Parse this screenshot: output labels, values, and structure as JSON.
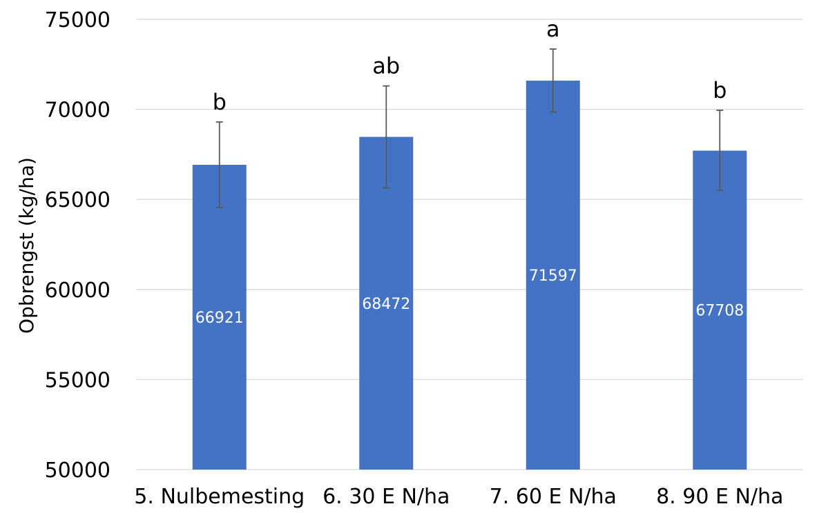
{
  "chart_data": {
    "type": "bar",
    "title": "",
    "xlabel": "",
    "ylabel": "Opbrengst (kg/ha)",
    "ylim": [
      50000,
      75000
    ],
    "yticks": [
      50000,
      55000,
      60000,
      65000,
      70000,
      75000
    ],
    "grid": true,
    "legend": "none",
    "bar_color": "#4472C4",
    "categories": [
      "5. Nulbemesting",
      "6. 30 E N/ha",
      "7. 60 E N/ha",
      "8. 90 E N/ha"
    ],
    "values": [
      66921,
      68472,
      71597,
      67708
    ],
    "data_labels": [
      "66921",
      "68472",
      "71597",
      "67708"
    ],
    "error_low": [
      64550,
      65650,
      69850,
      65500
    ],
    "error_high": [
      69300,
      71300,
      73350,
      69950
    ],
    "significance_letters": [
      "b",
      "ab",
      "a",
      "b"
    ]
  }
}
